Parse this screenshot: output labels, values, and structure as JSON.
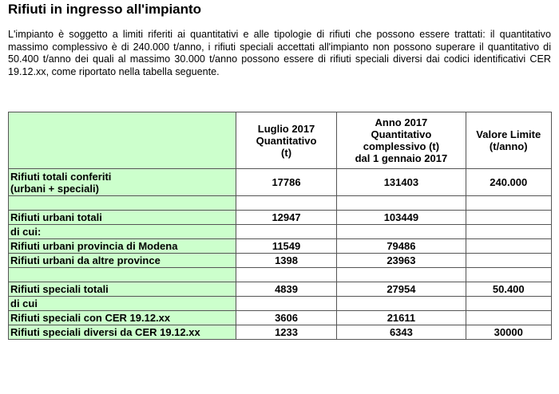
{
  "title": "Rifiuti in ingresso all'impianto",
  "paragraph": "L'impianto è soggetto a limiti riferiti ai quantitativi e alle tipologie di rifiuti che possono essere trattati: il quantitativo massimo complessivo è di 240.000 t/anno, i rifiuti speciali accettati all'impianto non possono superare il quantitativo di 50.400 t/anno dei quali al massimo 30.000 t/anno possono essere di rifiuti speciali diversi dai codici identificativi CER 19.12.xx, come riportato nella tabella seguente.",
  "table": {
    "headers": [
      "",
      "Luglio 2017 Quantitativo (t)",
      "Anno 2017 Quantitativo complessivo (t) dal 1 gennaio 2017",
      "Valore Limite (t/anno)"
    ],
    "header_lines": {
      "c1": [
        "Luglio 2017",
        "Quantitativo",
        "(t)"
      ],
      "c2": [
        "Anno 2017",
        "Quantitativo",
        "complessivo (t)",
        "dal 1 gennaio 2017"
      ],
      "c3": [
        "Valore Limite",
        "(t/anno)"
      ]
    },
    "rows": [
      {
        "label": "Rifiuti totali conferiti",
        "label2": "(urbani + speciali)",
        "c1": "17786",
        "c2": "131403",
        "c3": "240.000"
      },
      {
        "label": "",
        "c1": "",
        "c2": "",
        "c3": ""
      },
      {
        "label": "Rifiuti urbani totali",
        "c1": "12947",
        "c2": "103449",
        "c3": ""
      },
      {
        "label": "di cui:",
        "c1": "",
        "c2": "",
        "c3": ""
      },
      {
        "label": "Rifiuti urbani provincia di Modena",
        "c1": "11549",
        "c2": "79486",
        "c3": ""
      },
      {
        "label": "Rifiuti urbani da altre province",
        "c1": "1398",
        "c2": "23963",
        "c3": ""
      },
      {
        "label": "",
        "c1": "",
        "c2": "",
        "c3": ""
      },
      {
        "label": "Rifiuti speciali totali",
        "c1": "4839",
        "c2": "27954",
        "c3": "50.400"
      },
      {
        "label": "di cui",
        "c1": "",
        "c2": "",
        "c3": ""
      },
      {
        "label": "Rifiuti speciali con CER 19.12.xx",
        "c1": "3606",
        "c2": "21611",
        "c3": ""
      },
      {
        "label": "Rifiuti speciali diversi da CER 19.12.xx",
        "c1": "1233",
        "c2": "6343",
        "c3": "30000"
      }
    ]
  }
}
